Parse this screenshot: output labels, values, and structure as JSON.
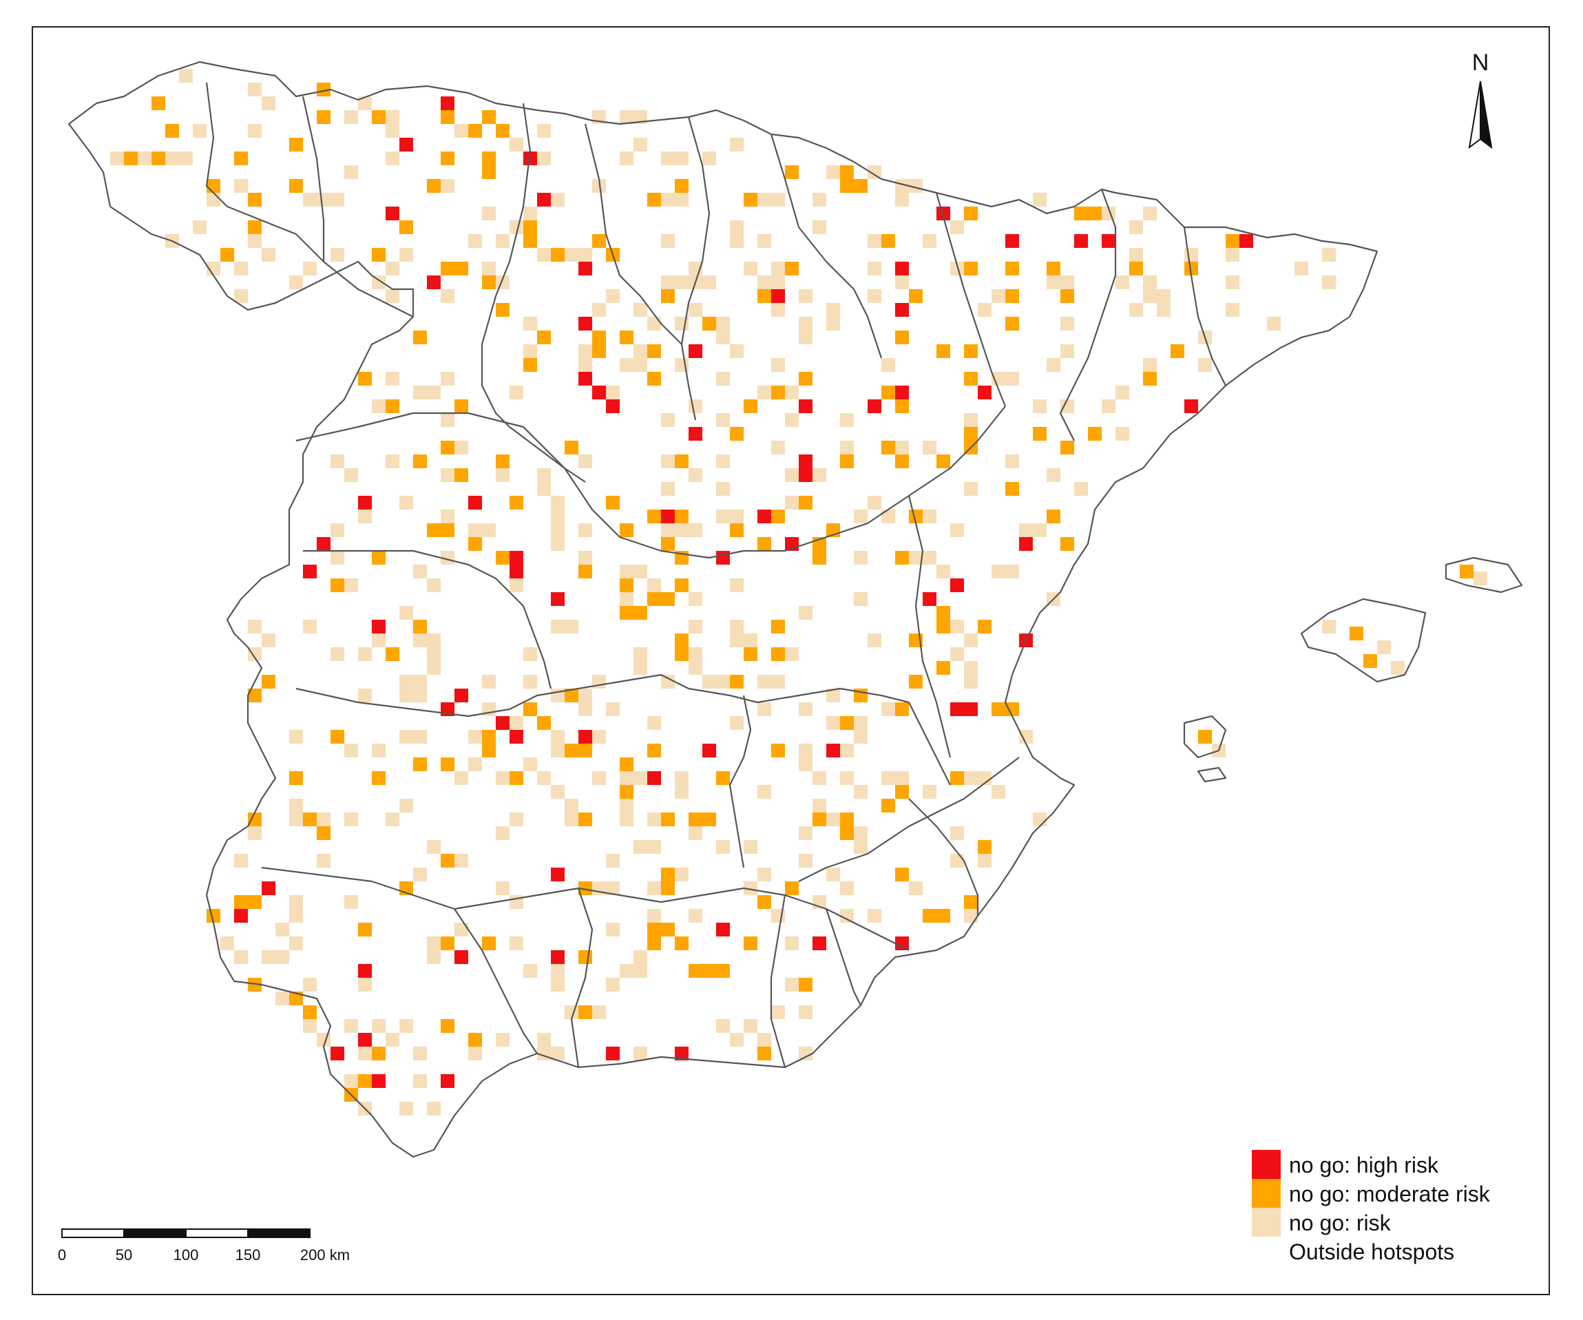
{
  "legend": {
    "items": [
      {
        "label": "no go: high risk",
        "color": "#ef0f14",
        "key": "high"
      },
      {
        "label": "no go: moderate risk",
        "color": "#ffa500",
        "key": "moderate"
      },
      {
        "label": "no go: risk",
        "color": "#f6deb9",
        "key": "risk"
      },
      {
        "label": "Outside hotspots",
        "color": "#ffffff",
        "key": "outside"
      }
    ]
  },
  "north_arrow": {
    "letter": "N"
  },
  "scale_bar": {
    "ticks": [
      "0",
      "50",
      "100",
      "150",
      "200 km"
    ]
  },
  "colors": {
    "high": "#ef0f14",
    "moderate": "#ffa500",
    "risk": "#f6deb9",
    "border": "#555555",
    "frame": "#222222"
  }
}
